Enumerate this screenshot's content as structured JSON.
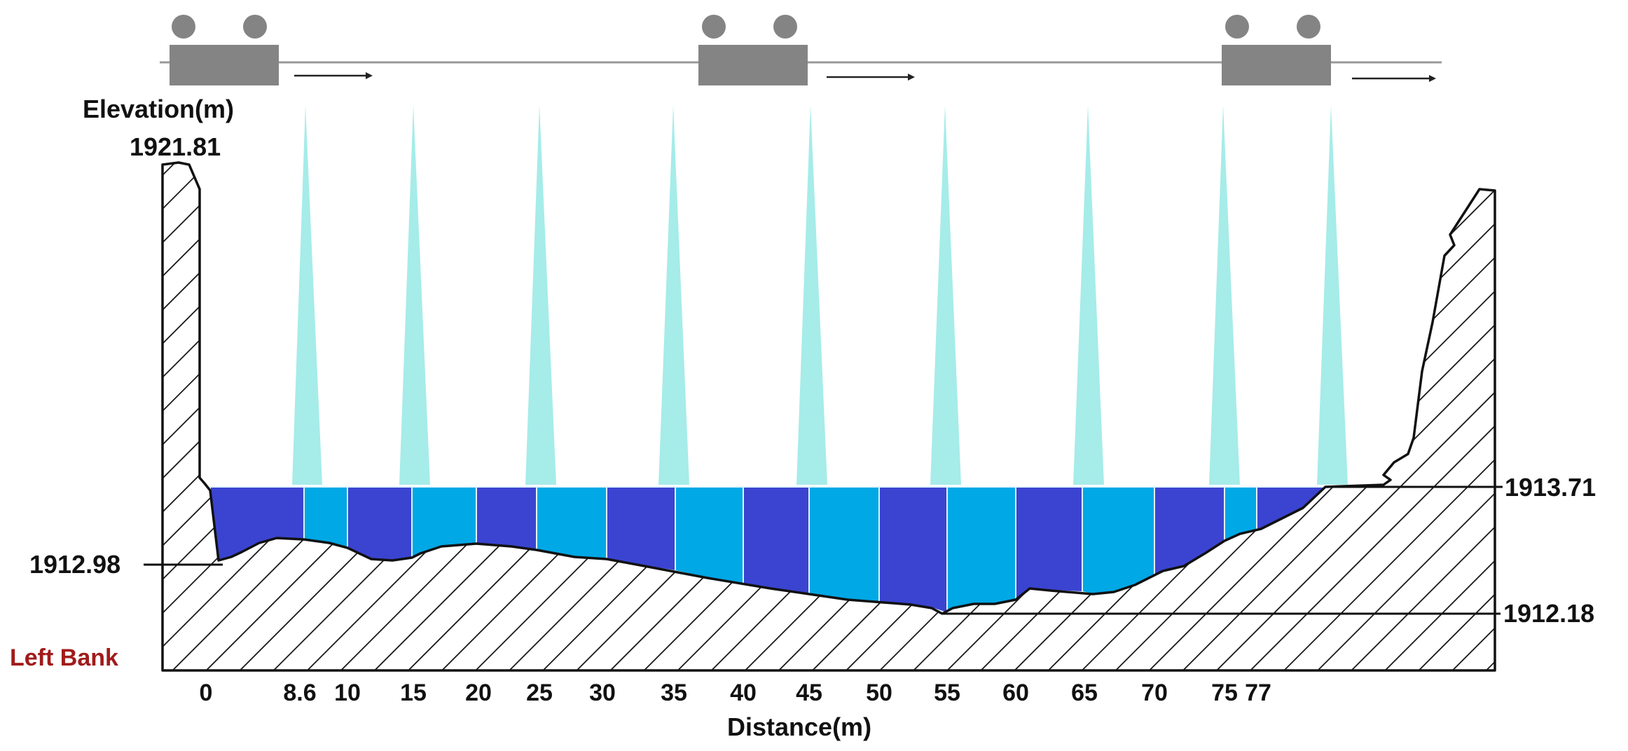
{
  "labels": {
    "elevation_axis": "Elevation(m)",
    "top_elevation": "1921.81",
    "water_level": "1913.71",
    "left_elevation": "1912.98",
    "bottom_elevation": "1912.18",
    "left_bank": "Left Bank",
    "distance_axis": "Distance(m)"
  },
  "distance_ticks": [
    "0",
    "8.6",
    "10",
    "15",
    "20",
    "25",
    "30",
    "35",
    "40",
    "45",
    "50",
    "55",
    "60",
    "65",
    "70",
    "75",
    "77"
  ],
  "colors": {
    "water_dark": "#3a44d0",
    "water_light": "#00a8e6",
    "beam": "#a6ece9",
    "vessel": "#848484",
    "left_bank_text": "#a11b1b",
    "hatch": "#111111"
  },
  "vessels": [
    {
      "icon": "vessel-icon"
    },
    {
      "icon": "vessel-icon"
    },
    {
      "icon": "vessel-icon"
    }
  ]
}
